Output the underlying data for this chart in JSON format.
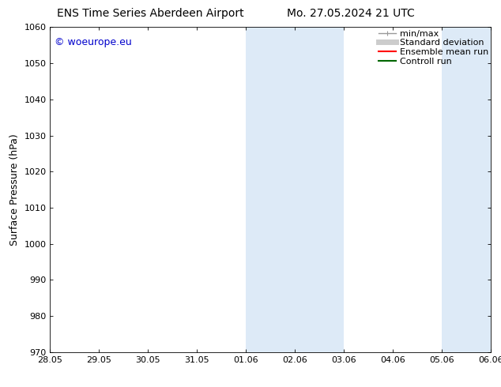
{
  "title_left": "ENS Time Series Aberdeen Airport",
  "title_right": "Mo. 27.05.2024 21 UTC",
  "ylabel": "Surface Pressure (hPa)",
  "ylim": [
    970,
    1060
  ],
  "yticks": [
    970,
    980,
    990,
    1000,
    1010,
    1020,
    1030,
    1040,
    1050,
    1060
  ],
  "xtick_labels": [
    "28.05",
    "29.05",
    "30.05",
    "31.05",
    "01.06",
    "02.06",
    "03.06",
    "04.06",
    "05.06",
    "06.06"
  ],
  "xtick_positions": [
    0,
    1,
    2,
    3,
    4,
    5,
    6,
    7,
    8,
    9
  ],
  "xlim": [
    0,
    9
  ],
  "shaded_bands": [
    {
      "x_start": 4.0,
      "x_end": 5.0
    },
    {
      "x_start": 5.0,
      "x_end": 6.0
    },
    {
      "x_start": 8.0,
      "x_end": 9.0
    }
  ],
  "watermark_text": "© woeurope.eu",
  "watermark_color": "#0000cc",
  "background_color": "#ffffff",
  "plot_bg_color": "#ffffff",
  "shade_color": "#ddeaf7",
  "legend_items": [
    {
      "label": "min/max",
      "color": "#999999",
      "lw": 1.0
    },
    {
      "label": "Standard deviation",
      "color": "#cccccc",
      "lw": 5
    },
    {
      "label": "Ensemble mean run",
      "color": "#ff0000",
      "lw": 1.5
    },
    {
      "label": "Controll run",
      "color": "#006600",
      "lw": 1.5
    }
  ],
  "title_fontsize": 10,
  "tick_fontsize": 8,
  "ylabel_fontsize": 9,
  "watermark_fontsize": 9,
  "legend_fontsize": 8
}
